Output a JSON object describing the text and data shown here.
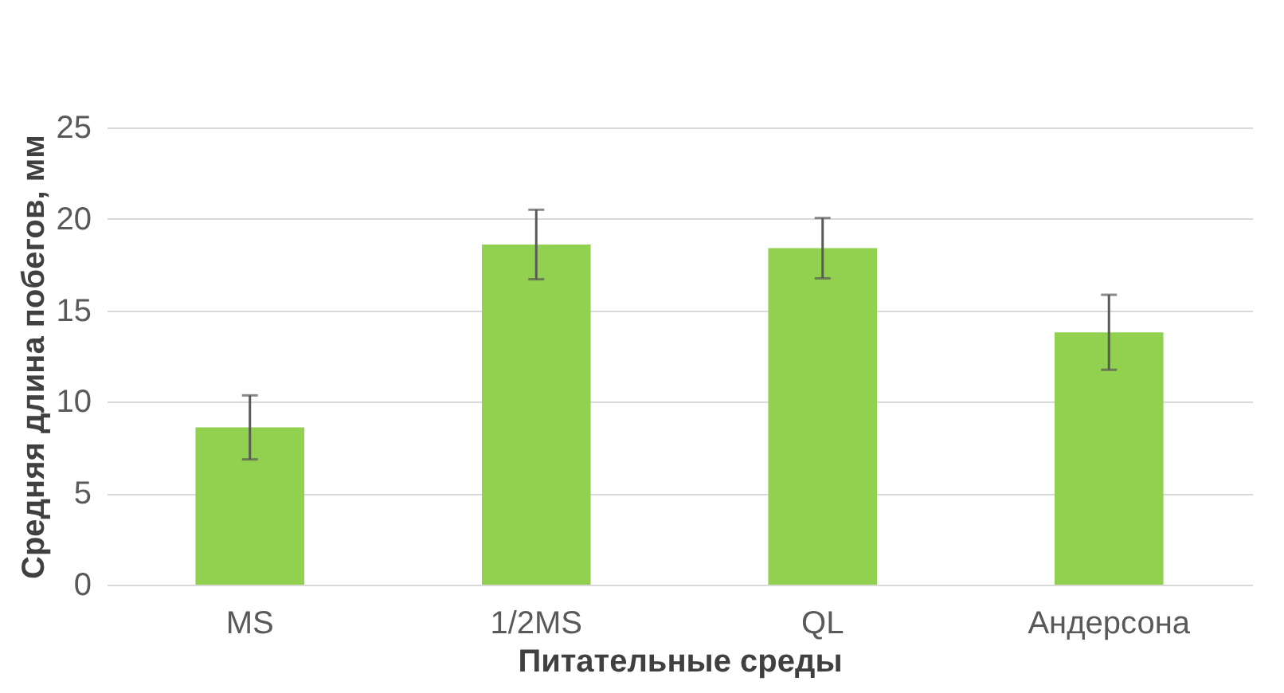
{
  "chart_data": {
    "type": "bar",
    "categories": [
      "MS",
      "1/2MS",
      "QL",
      "Андерсона"
    ],
    "values": [
      8.6,
      18.6,
      18.4,
      13.8
    ],
    "errors": [
      1.75,
      1.9,
      1.65,
      2.05
    ],
    "color": "#92d050",
    "xlabel": "Питательные среды",
    "ylabel": "Средняя длина побегов, мм",
    "ylim": [
      0,
      25
    ],
    "yticks": [
      0,
      5,
      10,
      15,
      20,
      25
    ],
    "grid": "y"
  }
}
